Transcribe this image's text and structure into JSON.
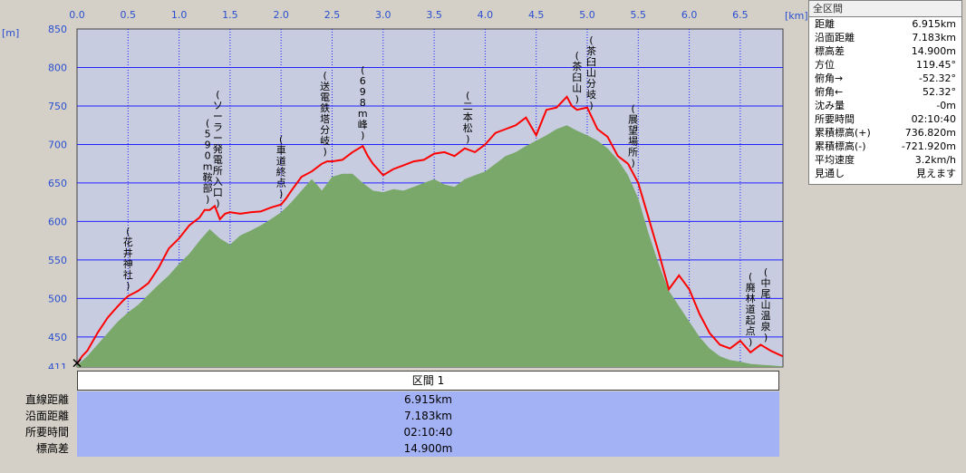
{
  "x_axis_unit": "[km]",
  "y_axis_unit": "[m]",
  "x_ticks": [
    "0.0",
    "0.5",
    "1.0",
    "1.5",
    "2.0",
    "2.5",
    "3.0",
    "3.5",
    "4.0",
    "4.5",
    "5.0",
    "5.5",
    "6.0",
    "6.5"
  ],
  "y_ticks": [
    "850",
    "800",
    "750",
    "700",
    "650",
    "600",
    "550",
    "500",
    "450",
    "411"
  ],
  "colors": {
    "plot_bg": "#c8cce0",
    "grid": "#2020ff",
    "terrain_fill": "#7aa86a",
    "route_line": "#ff0000",
    "axis_text": "#2a4fd0",
    "table_fill": "#a3b1f5"
  },
  "stats": {
    "title": "全区間",
    "rows": [
      {
        "label": "距離",
        "value": "6.915km"
      },
      {
        "label": "沿面距離",
        "value": "7.183km"
      },
      {
        "label": "標高差",
        "value": "14.900m"
      },
      {
        "label": "方位",
        "value": "119.45°"
      },
      {
        "label": "俯角→",
        "value": "-52.32°"
      },
      {
        "label": "俯角←",
        "value": "52.32°"
      },
      {
        "label": "沈み量",
        "value": "-0m"
      },
      {
        "label": "所要時間",
        "value": "02:10:40"
      },
      {
        "label": "累積標高(+)",
        "value": "736.820m"
      },
      {
        "label": "累積標高(-)",
        "value": "-721.920m"
      },
      {
        "label": "平均速度",
        "value": "3.2km/h"
      },
      {
        "label": "見通し",
        "value": "見えます"
      }
    ]
  },
  "section_table": {
    "header": "区間 1",
    "rows": [
      {
        "label": "直線距離",
        "value": "6.915km"
      },
      {
        "label": "沿面距離",
        "value": "7.183km"
      },
      {
        "label": "所要時間",
        "value": "02:10:40"
      },
      {
        "label": "標高差",
        "value": "14.900m"
      }
    ]
  },
  "chart_data": {
    "type": "area",
    "xlabel": "[km]",
    "ylabel": "[m]",
    "xlim": [
      0,
      6.915
    ],
    "ylim": [
      411,
      850
    ],
    "grid": true,
    "series": [
      {
        "name": "route",
        "x": [
          0,
          0.05,
          0.1,
          0.2,
          0.3,
          0.4,
          0.45,
          0.5,
          0.6,
          0.7,
          0.8,
          0.9,
          1.0,
          1.1,
          1.2,
          1.25,
          1.3,
          1.35,
          1.4,
          1.45,
          1.5,
          1.6,
          1.7,
          1.8,
          1.9,
          2.0,
          2.05,
          2.1,
          2.2,
          2.3,
          2.4,
          2.45,
          2.5,
          2.6,
          2.7,
          2.8,
          2.85,
          2.9,
          3.0,
          3.1,
          3.2,
          3.3,
          3.4,
          3.5,
          3.6,
          3.7,
          3.8,
          3.9,
          4.0,
          4.1,
          4.2,
          4.3,
          4.4,
          4.5,
          4.6,
          4.7,
          4.8,
          4.85,
          4.9,
          5.0,
          5.1,
          5.2,
          5.3,
          5.4,
          5.5,
          5.6,
          5.7,
          5.8,
          5.9,
          6.0,
          6.1,
          6.2,
          6.3,
          6.4,
          6.5,
          6.6,
          6.7,
          6.8,
          6.915
        ],
        "y": [
          415,
          425,
          432,
          455,
          475,
          490,
          497,
          503,
          510,
          520,
          540,
          565,
          578,
          595,
          605,
          615,
          615,
          620,
          603,
          610,
          612,
          610,
          612,
          613,
          618,
          622,
          630,
          640,
          658,
          665,
          675,
          678,
          678,
          680,
          690,
          698,
          685,
          675,
          660,
          668,
          673,
          678,
          680,
          688,
          690,
          685,
          695,
          690,
          700,
          715,
          720,
          725,
          735,
          712,
          745,
          748,
          762,
          750,
          745,
          748,
          720,
          710,
          685,
          675,
          650,
          605,
          560,
          512,
          530,
          512,
          480,
          455,
          440,
          435,
          445,
          430,
          440,
          432,
          425
        ]
      },
      {
        "name": "terrain",
        "x": [
          0,
          0.1,
          0.2,
          0.3,
          0.4,
          0.5,
          0.6,
          0.7,
          0.8,
          0.9,
          1.0,
          1.1,
          1.2,
          1.3,
          1.4,
          1.5,
          1.6,
          1.7,
          1.8,
          1.9,
          2.0,
          2.1,
          2.2,
          2.3,
          2.35,
          2.4,
          2.5,
          2.6,
          2.7,
          2.8,
          2.9,
          3.0,
          3.1,
          3.2,
          3.3,
          3.4,
          3.5,
          3.6,
          3.7,
          3.8,
          3.9,
          4.0,
          4.1,
          4.2,
          4.3,
          4.4,
          4.5,
          4.6,
          4.7,
          4.8,
          4.9,
          5.0,
          5.1,
          5.2,
          5.3,
          5.4,
          5.5,
          5.6,
          5.7,
          5.8,
          5.9,
          6.0,
          6.1,
          6.2,
          6.3,
          6.4,
          6.5,
          6.6,
          6.7,
          6.8,
          6.915
        ],
        "y": [
          413,
          425,
          440,
          455,
          470,
          482,
          492,
          505,
          518,
          530,
          545,
          558,
          575,
          590,
          578,
          570,
          582,
          588,
          595,
          603,
          612,
          625,
          640,
          655,
          648,
          640,
          658,
          662,
          662,
          650,
          640,
          638,
          642,
          640,
          645,
          650,
          655,
          648,
          645,
          655,
          660,
          665,
          675,
          685,
          690,
          698,
          705,
          712,
          720,
          725,
          718,
          712,
          705,
          695,
          680,
          660,
          630,
          585,
          545,
          510,
          490,
          470,
          450,
          435,
          425,
          420,
          418,
          415,
          414,
          413,
          412
        ]
      }
    ],
    "annotations": [
      {
        "text": "(花井神社)",
        "x": 0.5
      },
      {
        "text": "(ソーラー発電所入口)",
        "x": 1.38
      },
      {
        "text": "(590m鞍部)",
        "x": 1.28
      },
      {
        "text": "(車道終点)",
        "x": 2.0
      },
      {
        "text": "(送電鉄塔分岐)",
        "x": 2.43
      },
      {
        "text": "(698m峰)",
        "x": 2.8
      },
      {
        "text": "(二本松)",
        "x": 3.83
      },
      {
        "text": "(茶臼山分岐)",
        "x": 5.04
      },
      {
        "text": "(茶臼山)",
        "x": 4.9
      },
      {
        "text": "(展望場所)",
        "x": 5.45
      },
      {
        "text": "(中尾山温泉)",
        "x": 6.75
      },
      {
        "text": "(廃林道起点)",
        "x": 6.6
      }
    ]
  }
}
